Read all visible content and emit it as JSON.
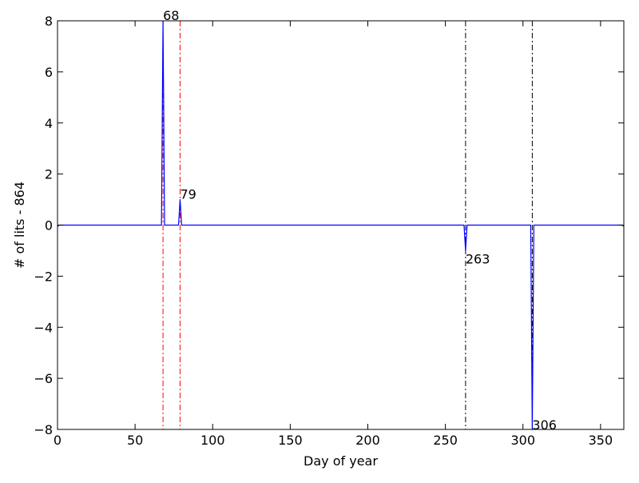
{
  "chart_data": {
    "type": "line",
    "title": "",
    "xlabel": "Day of year",
    "ylabel": "# of lits - 864",
    "xlim": [
      0,
      365
    ],
    "ylim": [
      -8,
      8
    ],
    "xticks": [
      0,
      50,
      100,
      150,
      200,
      250,
      300,
      350
    ],
    "yticks": [
      -8,
      -6,
      -4,
      -2,
      0,
      2,
      4,
      6,
      8
    ],
    "grid": false,
    "line_color": "#0000ff",
    "series": [
      {
        "x": [
          0,
          1,
          66,
          67,
          68,
          69,
          70,
          77,
          78,
          79,
          80,
          81,
          261,
          262,
          263,
          264,
          265,
          305,
          306,
          307,
          364,
          365
        ],
        "y": [
          -0.05,
          0,
          0,
          0,
          8,
          0,
          0,
          0,
          0,
          1,
          0,
          0,
          0,
          0,
          -1,
          0,
          0,
          0,
          -8,
          0,
          0,
          -0.05
        ]
      }
    ],
    "vlines": [
      {
        "x": 68,
        "color": "#ff0000",
        "style": "dashdot"
      },
      {
        "x": 79,
        "color": "#ff0000",
        "style": "dashdot"
      },
      {
        "x": 263,
        "color": "#000000",
        "style": "dashdot"
      },
      {
        "x": 306,
        "color": "#000000",
        "style": "dashdot"
      }
    ],
    "annotations": [
      {
        "text": "68",
        "x": 68,
        "y": 8
      },
      {
        "text": "79",
        "x": 79,
        "y": 1
      },
      {
        "text": "263",
        "x": 263,
        "y": -1
      },
      {
        "text": "306",
        "x": 306,
        "y": -8
      }
    ]
  }
}
